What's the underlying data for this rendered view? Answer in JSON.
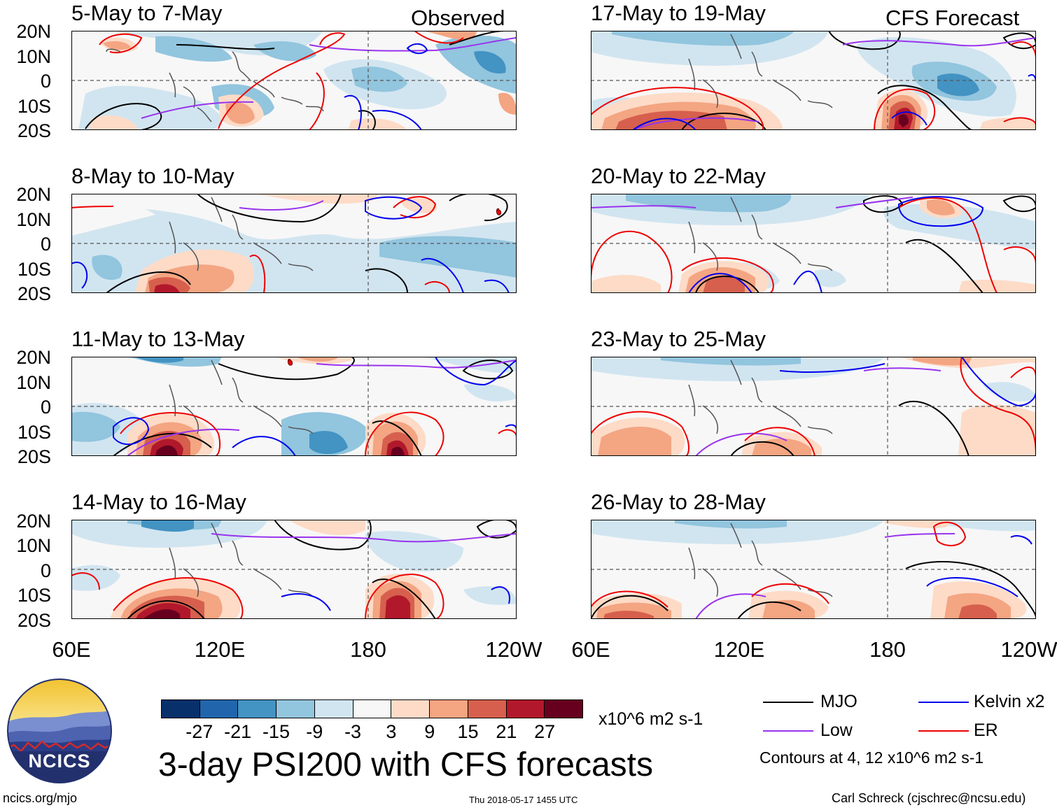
{
  "tags": {
    "observed": "Observed",
    "forecast": "CFS Forecast"
  },
  "panels_left": [
    {
      "title": "5-May to 7-May"
    },
    {
      "title": "8-May to 10-May"
    },
    {
      "title": "11-May to 13-May"
    },
    {
      "title": "14-May to 16-May"
    }
  ],
  "panels_right": [
    {
      "title": "17-May to 19-May"
    },
    {
      "title": "20-May to 22-May"
    },
    {
      "title": "23-May to 25-May"
    },
    {
      "title": "26-May to 28-May"
    }
  ],
  "lat_labels": [
    "20N",
    "10N",
    "0",
    "10S",
    "20S"
  ],
  "lon_labels": [
    "60E",
    "120E",
    "180",
    "120W"
  ],
  "colorbar": {
    "colors": [
      "#08306b",
      "#2166ac",
      "#4393c3",
      "#92c5de",
      "#d1e5f0",
      "#f7f7f7",
      "#fddbc7",
      "#f4a582",
      "#d6604d",
      "#b2182b",
      "#67001f"
    ],
    "labels": [
      "-27",
      "-21",
      "-15",
      "-9",
      "-3",
      "3",
      "9",
      "15",
      "21",
      "27"
    ],
    "units": "x10^6 m2 s-1"
  },
  "main_title": "3-day PSI200 with CFS forecasts",
  "legend": {
    "items": [
      {
        "label": "MJO",
        "color": "#000000"
      },
      {
        "label": "Kelvin x2",
        "color": "#0000ee"
      },
      {
        "label": "Low",
        "color": "#9933ee"
      },
      {
        "label": "ER",
        "color": "#ee0000"
      }
    ],
    "note": "Contours at 4, 12 x10^6 m2 s-1"
  },
  "logo": {
    "text": "NCICS"
  },
  "footer": {
    "url": "ncics.org/mjo",
    "timestamp": "Thu 2018-05-17 1455 UTC",
    "credit": "Carl Schreck (cjschrec@ncsu.edu)"
  }
}
